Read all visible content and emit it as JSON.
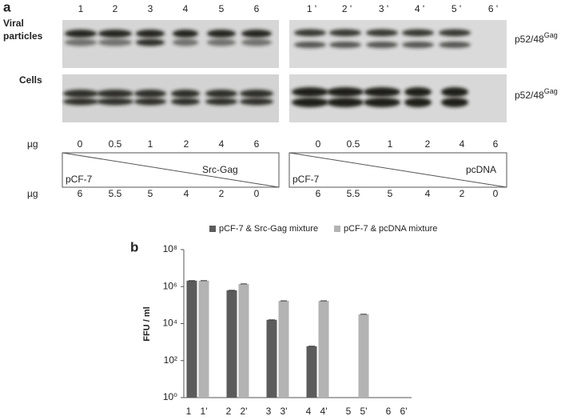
{
  "panel_a": {
    "label": "a",
    "lanes_left": [
      "1",
      "2",
      "3",
      "4",
      "5",
      "6"
    ],
    "lanes_right": [
      "1 '",
      "2 '",
      "3 '",
      "4 '",
      "5 '",
      "6 '"
    ],
    "row_labels": [
      [
        "Viral",
        "particles"
      ],
      [
        "Cells"
      ]
    ],
    "band_label": {
      "text": "p52/48",
      "sup": "Gag"
    },
    "unit": "µg",
    "left_top_amounts": [
      "0",
      "0.5",
      "1",
      "2",
      "4",
      "6"
    ],
    "left_bottom_amounts": [
      "6",
      "5.5",
      "5",
      "4",
      "2",
      "0"
    ],
    "right_top_amounts": [
      "0",
      "0.5",
      "1",
      "2",
      "4",
      "6"
    ],
    "right_bottom_amounts": [
      "6",
      "5.5",
      "5",
      "4",
      "2",
      "0"
    ],
    "left_upper_plasmid": "Src-Gag",
    "left_lower_plasmid": "pCF-7",
    "right_upper_plasmid": "pcDNA",
    "right_lower_plasmid": "pCF-7"
  },
  "chart_data": {
    "type": "bar",
    "panel_label": "b",
    "ylabel": "FFU / ml",
    "log_scale": true,
    "ylim": [
      1,
      100000000
    ],
    "yticks": [
      {
        "value": 1,
        "label": "10⁰"
      },
      {
        "value": 100,
        "label": "10²"
      },
      {
        "value": 10000,
        "label": "10⁴"
      },
      {
        "value": 1000000,
        "label": "10⁶"
      },
      {
        "value": 100000000,
        "label": "10⁸"
      }
    ],
    "series": [
      {
        "name": "pCF-7 & Src-Gag mixture",
        "color": "#5b5b5b",
        "bar_labels": [
          "1",
          "2",
          "3",
          "4",
          "5",
          "6"
        ],
        "values": [
          2100000,
          630000,
          16000,
          600,
          null,
          null
        ]
      },
      {
        "name": "pCF-7 & pcDNA mixture",
        "color": "#b3b3b3",
        "bar_labels": [
          "1'",
          "2'",
          "3'",
          "4'",
          "5'",
          "6'"
        ],
        "values": [
          2100000,
          1400000,
          170000,
          170000,
          32000,
          null
        ]
      }
    ]
  }
}
